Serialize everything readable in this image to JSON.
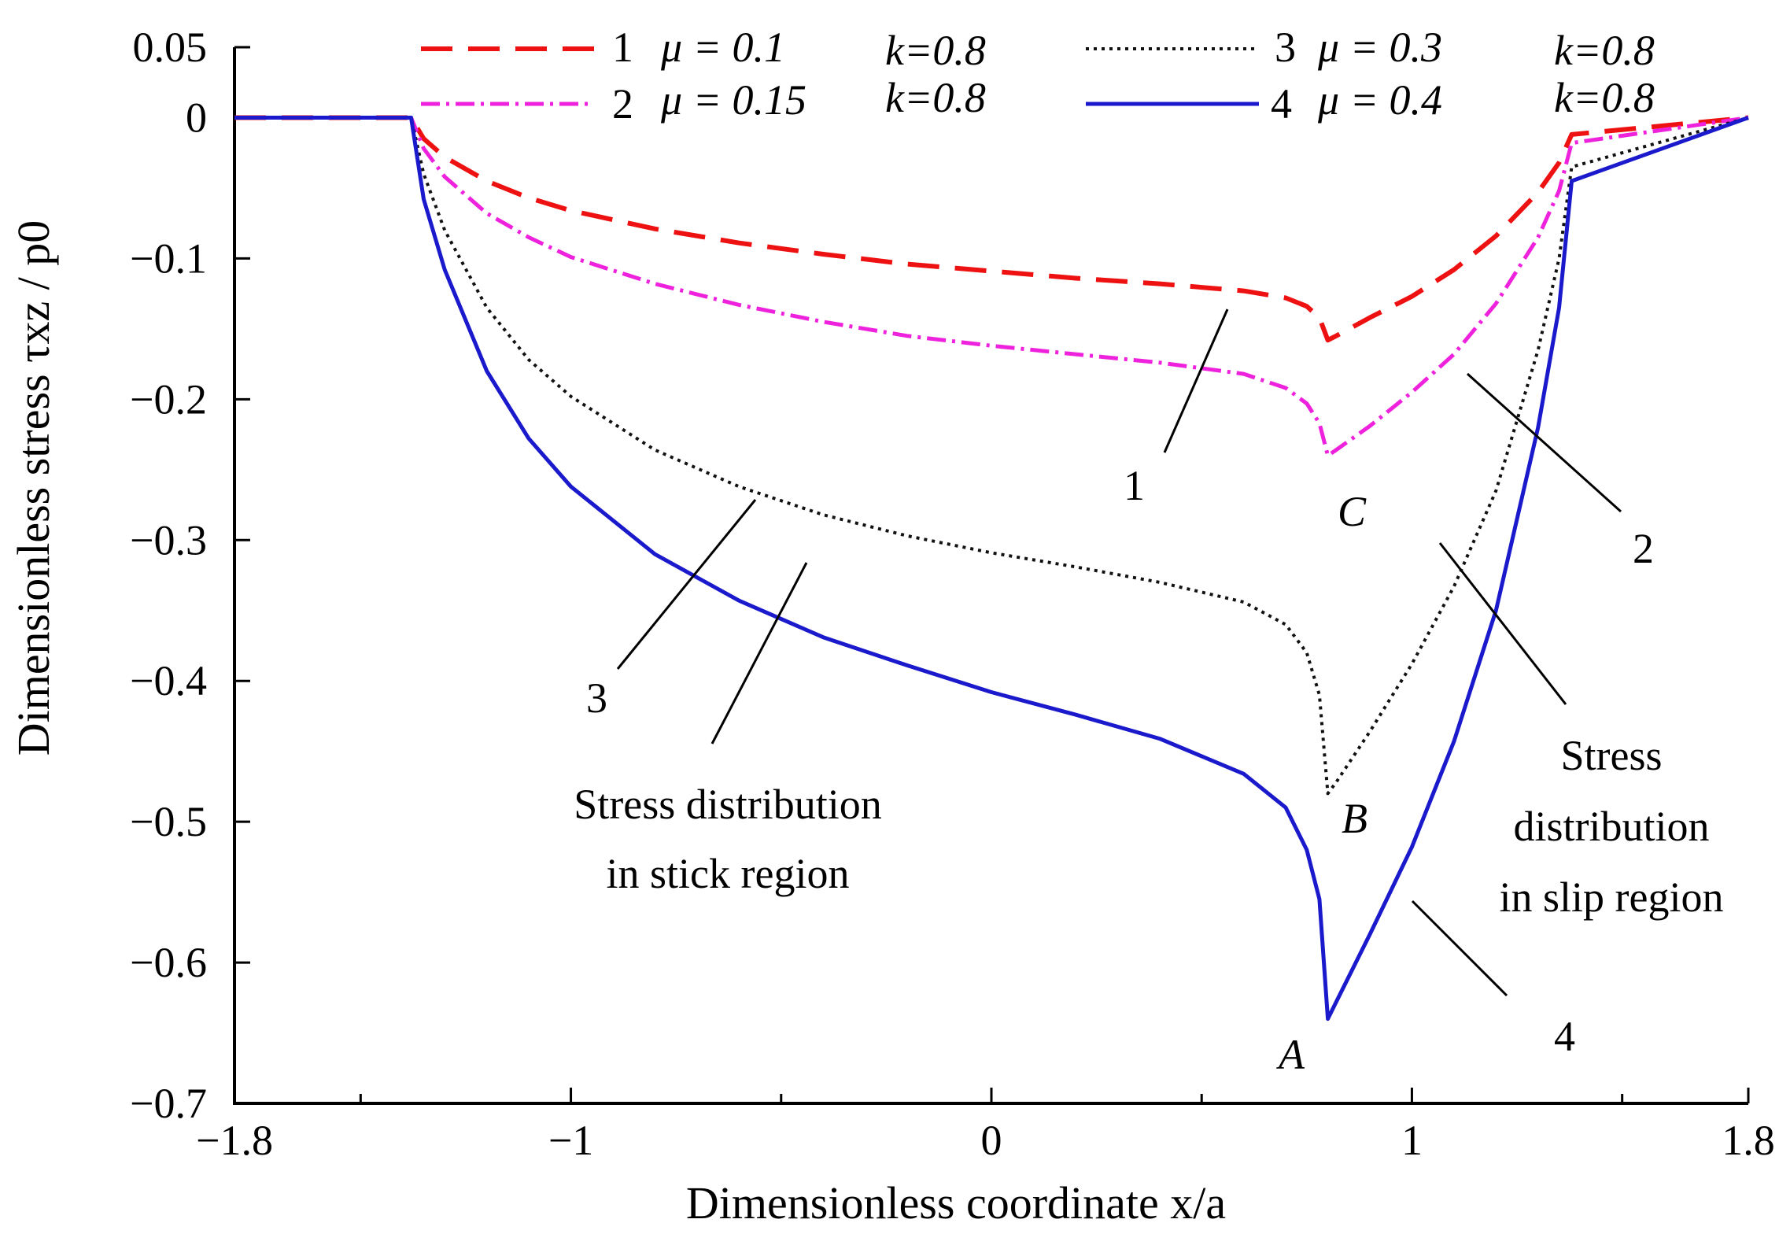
{
  "chart_data": {
    "type": "line",
    "title": "",
    "xlabel": "Dimensionless coordinate x/a",
    "ylabel": "Dimensionless stress τxz / p0",
    "xlim": [
      -1.8,
      1.8
    ],
    "ylim": [
      -0.7,
      0.05
    ],
    "x_ticks": [
      -1.8,
      -1,
      0,
      1,
      1.8
    ],
    "x_tick_labels": [
      "−1.8",
      "−1",
      "0",
      "1",
      "1.8"
    ],
    "y_ticks": [
      0.05,
      0,
      -0.1,
      -0.2,
      -0.3,
      -0.4,
      -0.5,
      -0.6,
      -0.7
    ],
    "y_tick_labels": [
      "0.05",
      "0",
      "−0.1",
      "−0.2",
      "−0.3",
      "−0.4",
      "−0.5",
      "−0.6",
      "−0.7"
    ],
    "grid": false,
    "legend_position": "top",
    "series": [
      {
        "name": "1",
        "mu_label": "μ = 0.1",
        "k_label": "k=0.8",
        "color": "#ee1111",
        "style": "dashed",
        "x": [
          -1.8,
          -1.38,
          -1.35,
          -1.3,
          -1.2,
          -1.1,
          -1.0,
          -0.8,
          -0.6,
          -0.4,
          -0.2,
          0.0,
          0.2,
          0.4,
          0.6,
          0.7,
          0.75,
          0.78,
          0.8,
          0.82,
          0.9,
          1.0,
          1.1,
          1.2,
          1.3,
          1.35,
          1.38,
          1.8
        ],
        "values": [
          0,
          0,
          -0.015,
          -0.028,
          -0.045,
          -0.057,
          -0.066,
          -0.079,
          -0.089,
          -0.097,
          -0.104,
          -0.109,
          -0.114,
          -0.118,
          -0.123,
          -0.128,
          -0.134,
          -0.142,
          -0.158,
          -0.155,
          -0.142,
          -0.127,
          -0.108,
          -0.084,
          -0.053,
          -0.032,
          -0.012,
          0
        ]
      },
      {
        "name": "2",
        "mu_label": "μ = 0.15",
        "k_label": "k=0.8",
        "color": "#ee22dd",
        "style": "dash-dot",
        "x": [
          -1.8,
          -1.38,
          -1.35,
          -1.3,
          -1.2,
          -1.1,
          -1.0,
          -0.8,
          -0.6,
          -0.4,
          -0.2,
          0.0,
          0.2,
          0.4,
          0.6,
          0.7,
          0.75,
          0.78,
          0.8,
          0.82,
          0.9,
          1.0,
          1.1,
          1.2,
          1.3,
          1.35,
          1.38,
          1.8
        ],
        "values": [
          0,
          0,
          -0.022,
          -0.042,
          -0.068,
          -0.085,
          -0.099,
          -0.118,
          -0.133,
          -0.145,
          -0.155,
          -0.162,
          -0.168,
          -0.174,
          -0.182,
          -0.192,
          -0.203,
          -0.217,
          -0.24,
          -0.236,
          -0.219,
          -0.195,
          -0.168,
          -0.132,
          -0.085,
          -0.052,
          -0.018,
          0
        ]
      },
      {
        "name": "3",
        "mu_label": "μ = 0.3",
        "k_label": "k=0.8",
        "color": "#111111",
        "style": "dotted",
        "x": [
          -1.8,
          -1.38,
          -1.35,
          -1.3,
          -1.2,
          -1.1,
          -1.0,
          -0.8,
          -0.6,
          -0.4,
          -0.2,
          0.0,
          0.2,
          0.4,
          0.6,
          0.7,
          0.75,
          0.78,
          0.8,
          0.82,
          0.9,
          1.0,
          1.1,
          1.2,
          1.3,
          1.35,
          1.38,
          1.8
        ],
        "values": [
          0,
          0,
          -0.04,
          -0.08,
          -0.135,
          -0.172,
          -0.198,
          -0.236,
          -0.262,
          -0.282,
          -0.297,
          -0.309,
          -0.319,
          -0.33,
          -0.344,
          -0.36,
          -0.38,
          -0.41,
          -0.48,
          -0.472,
          -0.436,
          -0.388,
          -0.333,
          -0.265,
          -0.165,
          -0.1,
          -0.035,
          0
        ]
      },
      {
        "name": "4",
        "mu_label": "μ = 0.4",
        "k_label": "k=0.8",
        "color": "#1a1acc",
        "style": "solid",
        "x": [
          -1.8,
          -1.38,
          -1.35,
          -1.3,
          -1.2,
          -1.1,
          -1.0,
          -0.8,
          -0.6,
          -0.4,
          -0.2,
          0.0,
          0.2,
          0.4,
          0.6,
          0.7,
          0.75,
          0.78,
          0.8,
          0.82,
          0.9,
          1.0,
          1.1,
          1.2,
          1.3,
          1.35,
          1.38,
          1.8
        ],
        "values": [
          0,
          0,
          -0.058,
          -0.108,
          -0.18,
          -0.228,
          -0.262,
          -0.31,
          -0.343,
          -0.369,
          -0.389,
          -0.408,
          -0.424,
          -0.441,
          -0.466,
          -0.49,
          -0.52,
          -0.555,
          -0.64,
          -0.628,
          -0.58,
          -0.518,
          -0.443,
          -0.35,
          -0.22,
          -0.135,
          -0.045,
          0
        ]
      }
    ],
    "point_labels": [
      {
        "label": "A",
        "x": 0.8,
        "y": -0.64
      },
      {
        "label": "B",
        "x": 0.8,
        "y": -0.48
      },
      {
        "label": "C",
        "x": 0.8,
        "y": -0.24
      }
    ],
    "curve_callouts": [
      "1",
      "2",
      "3",
      "4"
    ],
    "annotations": {
      "stick_line1": "Stress distribution",
      "stick_line2": "in stick region",
      "slip_line1": "Stress",
      "slip_line2": "distribution",
      "slip_line3": "in slip region"
    }
  }
}
